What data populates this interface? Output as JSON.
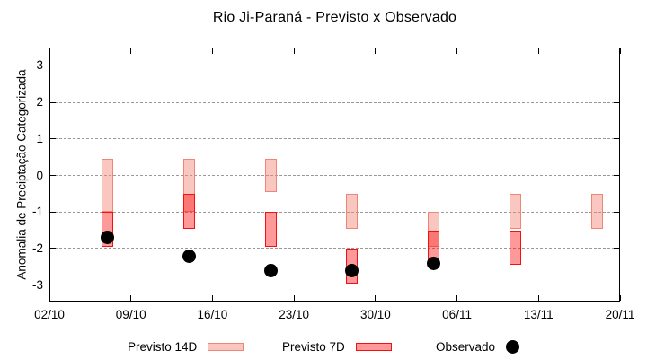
{
  "chart_data": {
    "type": "bar",
    "title": "Rio Ji-Paraná - Previsto x Observado",
    "ylabel": "Anomalia de Preciptação Categorizada",
    "xlabel": "",
    "x_axis": {
      "tick_labels": [
        "02/10",
        "09/10",
        "16/10",
        "23/10",
        "30/10",
        "06/11",
        "13/11",
        "20/11"
      ],
      "tick_days": [
        0,
        7,
        14,
        21,
        28,
        35,
        42,
        49
      ],
      "total_days": 49
    },
    "y_axis": {
      "ticks": [
        3,
        2,
        1,
        0,
        -1,
        -2,
        -3
      ],
      "lim": [
        -3.45,
        3.5
      ],
      "grid": "dashed"
    },
    "series": [
      {
        "name": "Previsto 14D",
        "kind": "range-bar",
        "fill": "rgba(243,130,115,0.45)",
        "border": "#ef8578",
        "border_width": 1,
        "bars": [
          {
            "date": "07/10",
            "day": 5,
            "high": 0.45,
            "low": -1.0
          },
          {
            "date": "14/10",
            "day": 12,
            "high": 0.45,
            "low": -1.0
          },
          {
            "date": "21/10",
            "day": 19,
            "high": 0.45,
            "low": -0.45
          },
          {
            "date": "28/10",
            "day": 26,
            "high": -0.5,
            "low": -1.45
          },
          {
            "date": "04/11",
            "day": 33,
            "high": -1.0,
            "low": -1.95
          },
          {
            "date": "11/11",
            "day": 40,
            "high": -0.5,
            "low": -1.45
          },
          {
            "date": "18/11",
            "day": 47,
            "high": -0.5,
            "low": -1.45
          }
        ]
      },
      {
        "name": "Previsto 7D",
        "kind": "range-bar",
        "fill": "rgba(255,10,10,0.42)",
        "border": "#f50f0f",
        "border_width": 1.5,
        "bars": [
          {
            "date": "07/10",
            "day": 5,
            "high": -1.0,
            "low": -1.95
          },
          {
            "date": "14/10",
            "day": 12,
            "high": -0.5,
            "low": -1.45
          },
          {
            "date": "21/10",
            "day": 19,
            "high": -1.0,
            "low": -1.95
          },
          {
            "date": "28/10",
            "day": 26,
            "high": -2.0,
            "low": -2.95
          },
          {
            "date": "04/11",
            "day": 33,
            "high": -1.5,
            "low": -2.4
          },
          {
            "date": "11/11",
            "day": 40,
            "high": -1.5,
            "low": -2.45
          }
        ]
      },
      {
        "name": "Observado",
        "kind": "point",
        "color": "#000000",
        "points": [
          {
            "date": "07/10",
            "day": 5,
            "value": -1.7
          },
          {
            "date": "14/10",
            "day": 12,
            "value": -2.2
          },
          {
            "date": "21/10",
            "day": 19,
            "value": -2.6
          },
          {
            "date": "28/10",
            "day": 26,
            "value": -2.6
          },
          {
            "date": "04/11",
            "day": 33,
            "value": -2.4
          }
        ]
      }
    ],
    "legend": {
      "position": "bottom",
      "entries": [
        "Previsto 14D",
        "Previsto 7D",
        "Observado"
      ]
    }
  },
  "colors": {
    "background": "#ffffff",
    "axis": "#000000",
    "grid": "#9a9a9a",
    "observed": "#000000"
  }
}
